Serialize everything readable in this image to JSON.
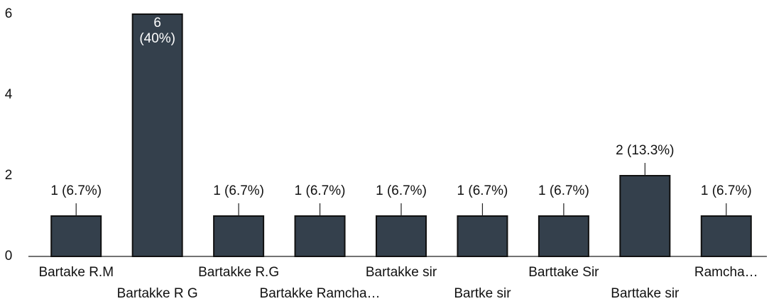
{
  "chart_data": {
    "type": "bar",
    "categories": [
      "Bartake R.M",
      "Bartakke R G",
      "Bartakke R.G",
      "Bartakke Ramcha…",
      "Bartakke sir",
      "Bartke sir",
      "Barttake Sir",
      "Barttake sir",
      "Ramcha…"
    ],
    "values": [
      1,
      6,
      1,
      1,
      1,
      1,
      1,
      2,
      1
    ],
    "value_labels": [
      "1 (6.7%)",
      "6\n(40%)",
      "1 (6.7%)",
      "1 (6.7%)",
      "1 (6.7%)",
      "1 (6.7%)",
      "1 (6.7%)",
      "2 (13.3%)",
      "1 (6.7%)"
    ],
    "color": "#34404c",
    "ylim": [
      0,
      6
    ],
    "yticks": [
      0,
      2,
      4,
      6
    ],
    "grid": false
  }
}
